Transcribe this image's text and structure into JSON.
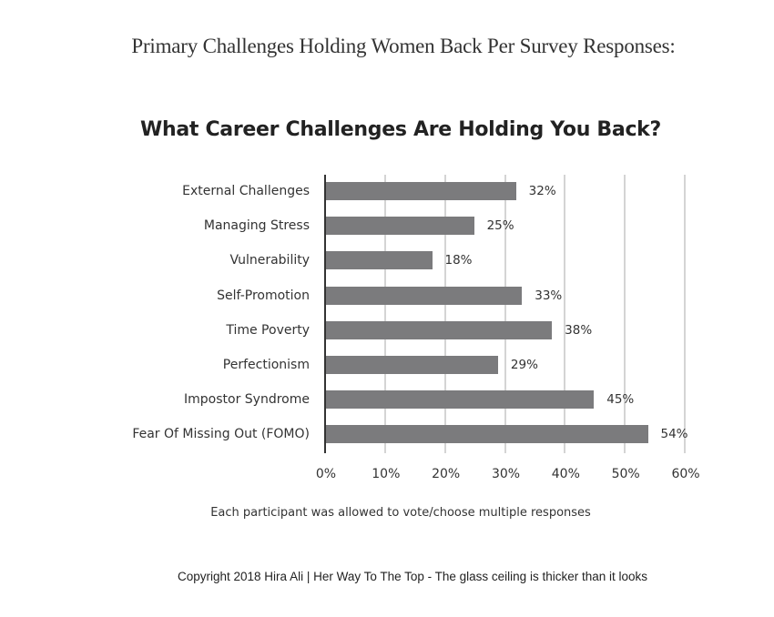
{
  "page": {
    "title": "Primary Challenges Holding Women Back Per Survey Responses:",
    "note": "Each participant was allowed to vote/choose multiple responses",
    "copyright": "Copyright 2018 Hira Ali |  Her Way To The Top - The glass ceiling is thicker than it looks"
  },
  "colors": {
    "bar": "#7b7b7d",
    "axis": "#333333",
    "grid": "#d4d4d4"
  },
  "chart_data": {
    "type": "bar",
    "orientation": "horizontal",
    "title": "What Career Challenges Are Holding You Back?",
    "categories": [
      "External Challenges",
      "Managing Stress",
      "Vulnerability",
      "Self-Promotion",
      "Time Poverty",
      "Perfectionism",
      "Impostor Syndrome",
      "Fear Of Missing Out (FOMO)"
    ],
    "values": [
      32,
      25,
      18,
      33,
      38,
      29,
      45,
      54
    ],
    "value_labels": [
      "32%",
      "25%",
      "18%",
      "33%",
      "38%",
      "29%",
      "45%",
      "54%"
    ],
    "xlabel": "",
    "ylabel": "",
    "xlim": [
      0,
      60
    ],
    "x_ticks": [
      "0%",
      "10%",
      "20%",
      "30%",
      "40%",
      "50%",
      "60%"
    ],
    "grid": true,
    "legend": null
  }
}
